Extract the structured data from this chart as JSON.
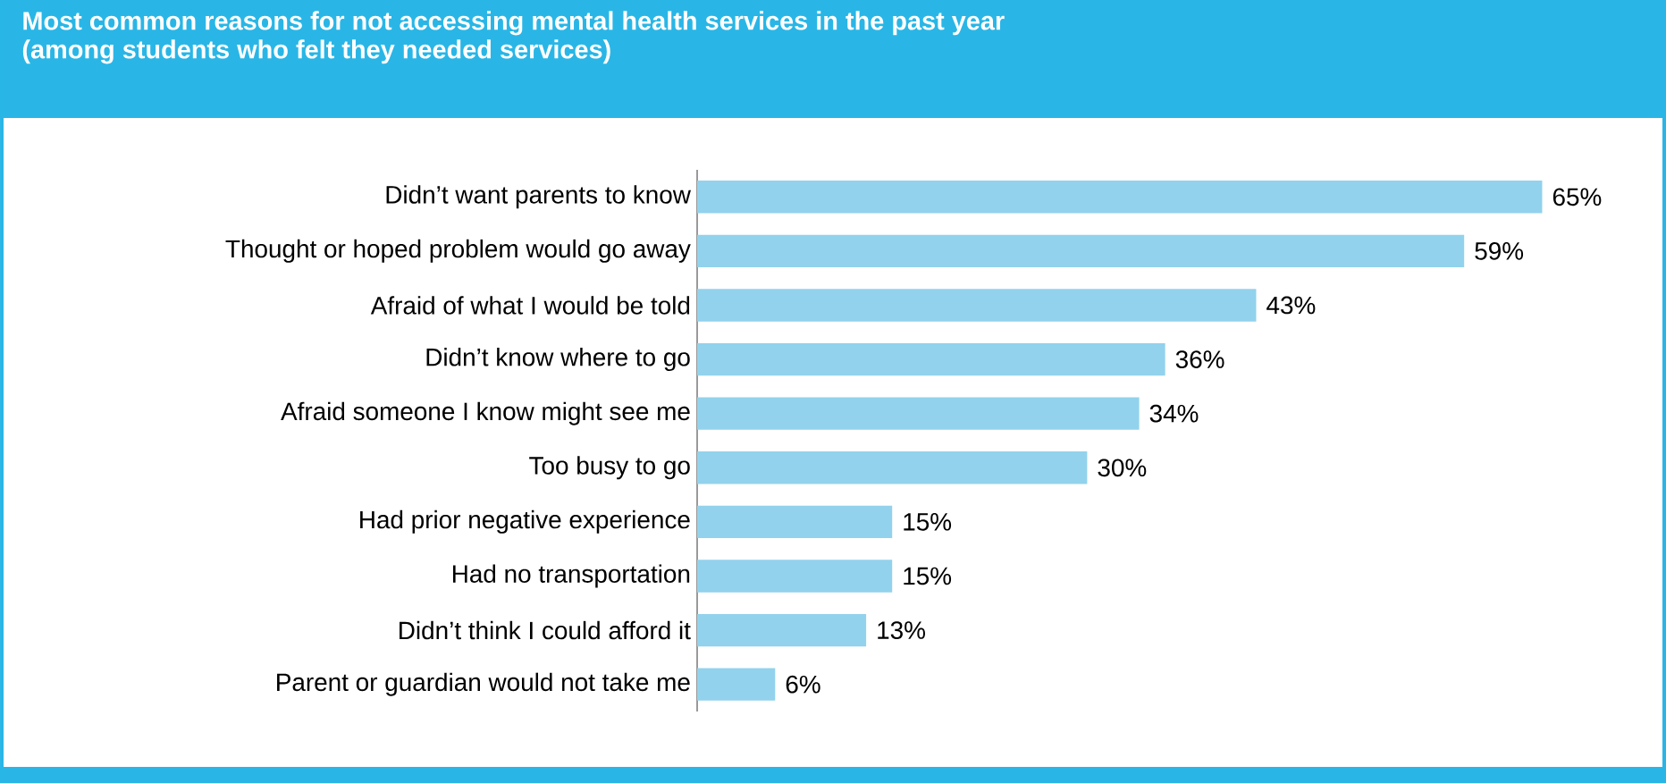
{
  "chart_data": {
    "type": "bar",
    "orientation": "horizontal",
    "title": "Most common reasons for not accessing mental health services in the past year",
    "subtitle": "(among students who felt they needed services)",
    "color": "#92d2ec",
    "categories": [
      "Didn’t want parents to know",
      "Thought or hoped problem would go away",
      "Afraid of what I would be told",
      "Didn’t know where to go",
      "Afraid someone I know might see me",
      "Too busy to go",
      "Had prior negative experience",
      "Had no transportation",
      "Didn’t think I could afford it",
      "Parent or guardian would not take me"
    ],
    "values": [
      65,
      59,
      43,
      36,
      34,
      30,
      15,
      15,
      13,
      6
    ],
    "value_labels": [
      "65%",
      "59%",
      "43%",
      "36%",
      "34%",
      "30%",
      "15%",
      "15%",
      "13%",
      "6%"
    ]
  }
}
